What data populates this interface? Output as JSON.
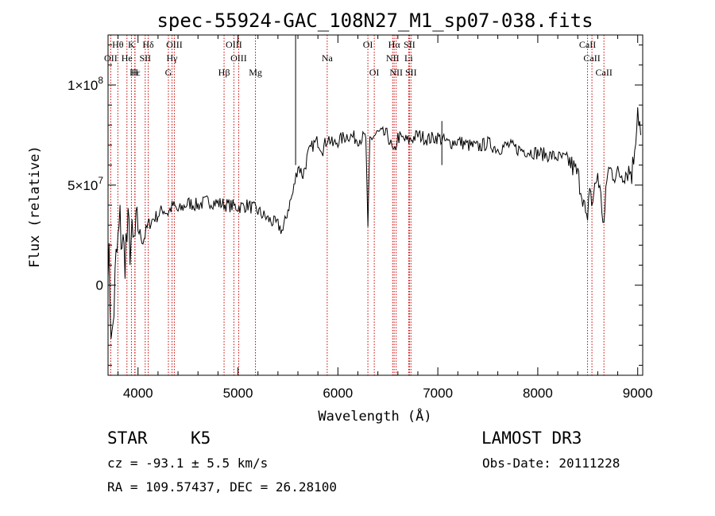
{
  "chart_data": {
    "type": "line",
    "title": "spec-55924-GAC_108N27_M1_sp07-038.fits",
    "xlabel": "Wavelength (Å)",
    "ylabel": "Flux (relative)",
    "xlim": [
      3700,
      9050
    ],
    "ylim": [
      -45000000,
      125000000
    ],
    "x_ticks": [
      {
        "value": 4000,
        "label": "4000"
      },
      {
        "value": 5000,
        "label": "5000"
      },
      {
        "value": 6000,
        "label": "6000"
      },
      {
        "value": 7000,
        "label": "7000"
      },
      {
        "value": 8000,
        "label": "8000"
      },
      {
        "value": 9000,
        "label": "9000"
      }
    ],
    "y_ticks": [
      {
        "value": 0,
        "label": "0",
        "sup": ""
      },
      {
        "value": 50000000,
        "label": "5×10",
        "sup": "7"
      },
      {
        "value": 100000000,
        "label": "1×10",
        "sup": "8"
      }
    ],
    "series": [
      {
        "name": "flux",
        "x": [
          3700,
          3740,
          3780,
          3820,
          3860,
          3900,
          3950,
          4000,
          4050,
          4100,
          4150,
          4200,
          4250,
          4300,
          4350,
          4400,
          4450,
          4500,
          4600,
          4700,
          4800,
          4900,
          5000,
          5100,
          5200,
          5300,
          5400,
          5450,
          5500,
          5550,
          5600,
          5650,
          5700,
          5750,
          5800,
          5850,
          5900,
          5950,
          6000,
          6100,
          6200,
          6280,
          6300,
          6320,
          6400,
          6500,
          6560,
          6600,
          6700,
          6800,
          6900,
          7000,
          7100,
          7200,
          7300,
          7400,
          7500,
          7600,
          7700,
          7800,
          7900,
          8000,
          8100,
          8200,
          8300,
          8400,
          8450,
          8498,
          8520,
          8540,
          8600,
          8662,
          8700,
          8800,
          8900,
          8950,
          9000,
          9030
        ],
        "y": [
          20000000,
          -30000000,
          10000000,
          30000000,
          15000000,
          25000000,
          18000000,
          28000000,
          22000000,
          30000000,
          33000000,
          35000000,
          38000000,
          36000000,
          40000000,
          37000000,
          39000000,
          41000000,
          40000000,
          42000000,
          41000000,
          40000000,
          39000000,
          40000000,
          37000000,
          33000000,
          30000000,
          27000000,
          38000000,
          46000000,
          60000000,
          55000000,
          65000000,
          70000000,
          72000000,
          68000000,
          74000000,
          70000000,
          72000000,
          75000000,
          73000000,
          74000000,
          26000000,
          73000000,
          76000000,
          75000000,
          65000000,
          74000000,
          72000000,
          75000000,
          73000000,
          74000000,
          71000000,
          72000000,
          70000000,
          69000000,
          71000000,
          68000000,
          70000000,
          68000000,
          67000000,
          66000000,
          65000000,
          64000000,
          63000000,
          55000000,
          45000000,
          28000000,
          52000000,
          40000000,
          56000000,
          30000000,
          58000000,
          55000000,
          57000000,
          58000000,
          90000000,
          75000000
        ]
      }
    ],
    "spectral_lines": [
      {
        "name": "Hθ",
        "wave": 3798,
        "row": 0
      },
      {
        "name": "K",
        "wave": 3934,
        "row": 0
      },
      {
        "name": "Hδ",
        "wave": 4102,
        "row": 0
      },
      {
        "name": "OIII",
        "wave": 4363,
        "row": 0
      },
      {
        "name": "OIII",
        "wave": 4959,
        "row": 0
      },
      {
        "name": "OI",
        "wave": 6300,
        "row": 0
      },
      {
        "name": "Hα",
        "wave": 6563,
        "row": 0
      },
      {
        "name": "SII",
        "wave": 6716,
        "row": 0
      },
      {
        "name": "CaII",
        "wave": 8498,
        "row": 0
      },
      {
        "name": "OII",
        "wave": 3727,
        "row": 1
      },
      {
        "name": "He",
        "wave": 3889,
        "row": 1
      },
      {
        "name": "SII",
        "wave": 4072,
        "row": 1
      },
      {
        "name": "Hγ",
        "wave": 4340,
        "row": 1
      },
      {
        "name": "OIII",
        "wave": 5007,
        "row": 1
      },
      {
        "name": "Na",
        "wave": 5893,
        "row": 1
      },
      {
        "name": "NII",
        "wave": 6548,
        "row": 1
      },
      {
        "name": "Li",
        "wave": 6708,
        "row": 1
      },
      {
        "name": "CaII",
        "wave": 8542,
        "row": 1
      },
      {
        "name": "Hε",
        "wave": 3970,
        "row": 2
      },
      {
        "name": "H",
        "wave": 3968,
        "row": 2
      },
      {
        "name": "G",
        "wave": 4304,
        "row": 2
      },
      {
        "name": "Hβ",
        "wave": 4861,
        "row": 2
      },
      {
        "name": "Mg",
        "wave": 5175,
        "row": 2
      },
      {
        "name": "OI",
        "wave": 6364,
        "row": 2
      },
      {
        "name": "NII",
        "wave": 6583,
        "row": 2
      },
      {
        "name": "SII",
        "wave": 6731,
        "row": 2
      },
      {
        "name": "CaII",
        "wave": 8662,
        "row": 2
      }
    ]
  },
  "info": {
    "object_class": "STAR",
    "subclass": "K5",
    "survey": "LAMOST DR3",
    "redshift": "cz = -93.1 ± 5.5 km/s",
    "obs_date": "Obs-Date: 20111228",
    "coords": "RA = 109.57437, DEC =  26.28100"
  },
  "colors": {
    "line": "#000000",
    "marker": "#cc0000",
    "background": "#ffffff"
  }
}
